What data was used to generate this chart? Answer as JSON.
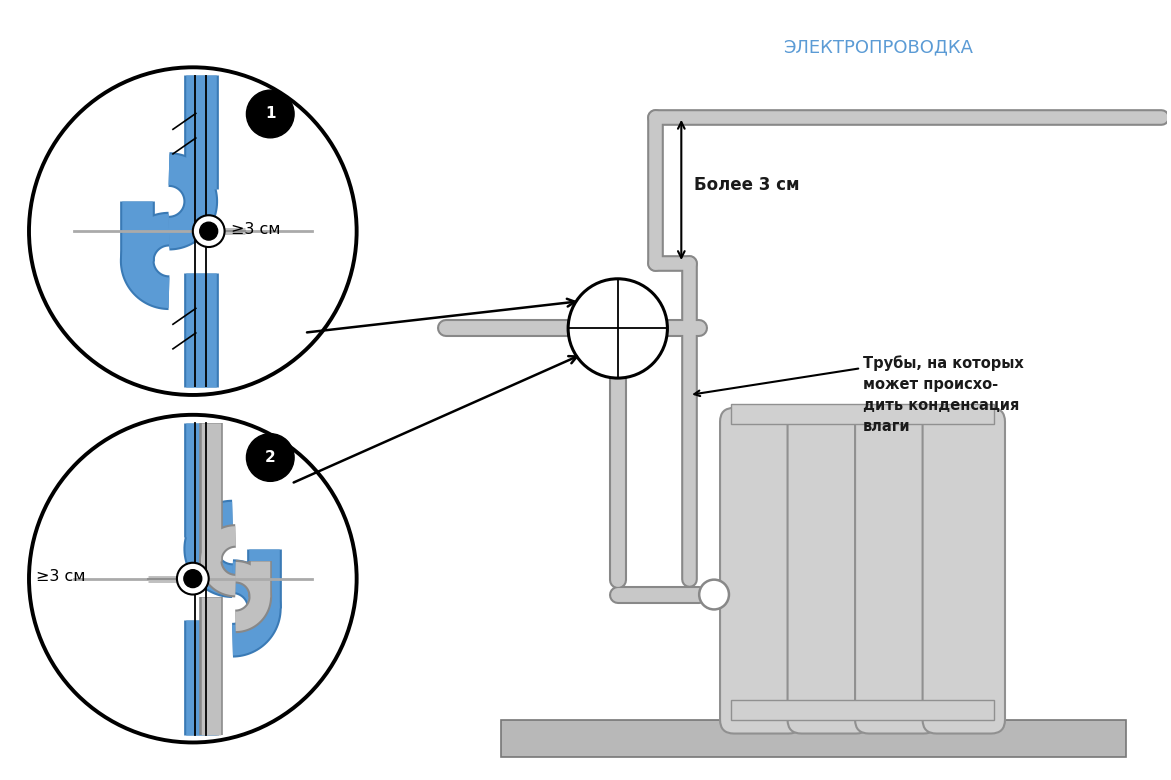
{
  "bg_color": "#ffffff",
  "title_elektro": "ЭЛЕКТРОПРОВОДКА",
  "title_elektro_color": "#5b9bd5",
  "label_bolee": "Более 3 см",
  "label_trubi": "Трубы, на которых\nможет происхо-\nдить конденсация\nвлаги",
  "label_ge3_1": "≥3 см",
  "label_ge3_2": "≥3 см",
  "pipe_color": "#c8c8c8",
  "pipe_outline": "#888888",
  "blue_color": "#5b9bd5",
  "radiator_color": "#d0d0d0",
  "floor_color": "#b8b8b8",
  "text_color": "#1a1a1a",
  "blue_fill": "#7bafd4"
}
